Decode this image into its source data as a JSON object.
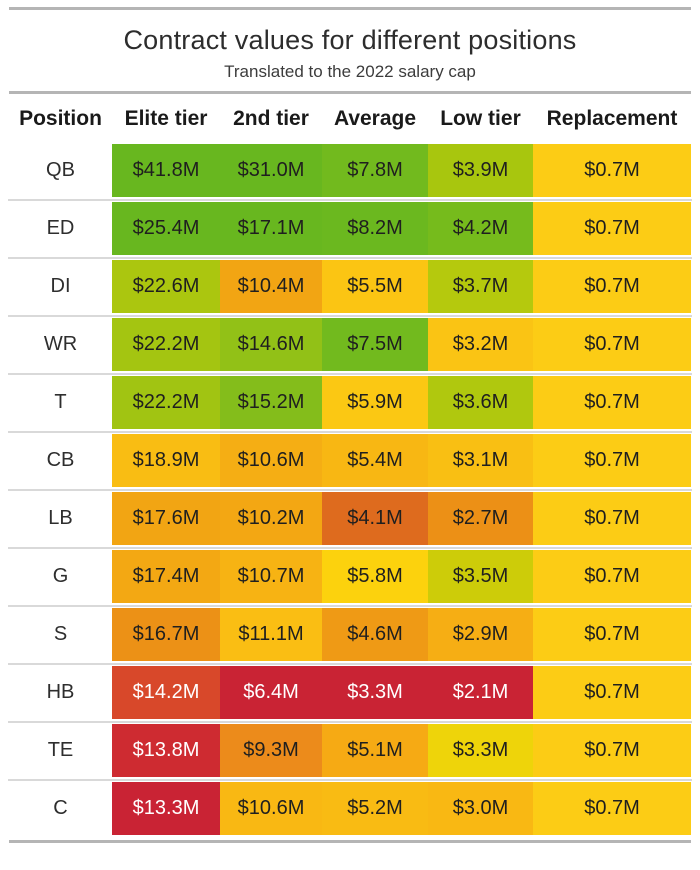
{
  "title": "Contract values for different positions",
  "subtitle": "Translated to the 2022 salary cap",
  "table": {
    "columns": [
      "Position",
      "Elite tier",
      "2nd tier",
      "Average",
      "Low tier",
      "Replacement"
    ]
  },
  "chart_data": {
    "type": "heatmap",
    "title": "Contract values for different positions",
    "subtitle": "Translated to the 2022 salary cap",
    "unit": "million USD (2022 salary cap)",
    "value_format": "$%.1fM",
    "row_label_header": "Position",
    "columns": [
      "Elite tier",
      "2nd tier",
      "Average",
      "Low tier",
      "Replacement"
    ],
    "rows": [
      "QB",
      "ED",
      "DI",
      "WR",
      "T",
      "CB",
      "LB",
      "G",
      "S",
      "HB",
      "TE",
      "C"
    ],
    "values_musd": [
      [
        41.8,
        31.0,
        7.8,
        3.9,
        0.7
      ],
      [
        25.4,
        17.1,
        8.2,
        4.2,
        0.7
      ],
      [
        22.6,
        10.4,
        5.5,
        3.7,
        0.7
      ],
      [
        22.2,
        14.6,
        7.5,
        3.2,
        0.7
      ],
      [
        22.2,
        15.2,
        5.9,
        3.6,
        0.7
      ],
      [
        18.9,
        10.6,
        5.4,
        3.1,
        0.7
      ],
      [
        17.6,
        10.2,
        4.1,
        2.7,
        0.7
      ],
      [
        17.4,
        10.7,
        5.8,
        3.5,
        0.7
      ],
      [
        16.7,
        11.1,
        4.6,
        2.9,
        0.7
      ],
      [
        14.2,
        6.4,
        3.3,
        2.1,
        0.7
      ],
      [
        13.8,
        9.3,
        5.1,
        3.3,
        0.7
      ],
      [
        13.3,
        10.6,
        5.2,
        3.0,
        0.7
      ]
    ],
    "cell_colors": [
      [
        "#68B71F",
        "#68B71F",
        "#72BA1E",
        "#A8C60E",
        "#FCCC15"
      ],
      [
        "#68B71F",
        "#68B71F",
        "#6BB81F",
        "#76BB1C",
        "#FCCC15"
      ],
      [
        "#ABC60F",
        "#F2A513",
        "#FBC513",
        "#B5C90D",
        "#FCCC15"
      ],
      [
        "#A4C511",
        "#92C117",
        "#72BA1E",
        "#FAC414",
        "#FCCC15"
      ],
      [
        "#A1C412",
        "#84BD1B",
        "#FBC813",
        "#B0C80E",
        "#FCCC15"
      ],
      [
        "#F9BD13",
        "#F5AE14",
        "#F8B713",
        "#F9BF13",
        "#FCCC15"
      ],
      [
        "#F2A513",
        "#F3A713",
        "#DE6B1E",
        "#EC9016",
        "#FCCC15"
      ],
      [
        "#F3A813",
        "#F7B313",
        "#FCD20D",
        "#CDCC09",
        "#FCCC15"
      ],
      [
        "#EC9116",
        "#FABE13",
        "#EF9A15",
        "#F6AE14",
        "#FCCC15"
      ],
      [
        "#D8482A",
        "#C92334",
        "#C92334",
        "#C92334",
        "#FCCC15"
      ],
      [
        "#CE2B31",
        "#EC8B1B",
        "#F6AA14",
        "#EED40A",
        "#FCCC15"
      ],
      [
        "#C92334",
        "#F9B813",
        "#F9BB13",
        "#F9B813",
        "#FCCC15"
      ]
    ],
    "white_text_cells": [
      [
        9,
        0
      ],
      [
        9,
        1
      ],
      [
        9,
        2
      ],
      [
        9,
        3
      ],
      [
        10,
        0
      ],
      [
        11,
        0
      ]
    ],
    "text_color_default": "#1f1f1f",
    "text_color_light": "#ffffff",
    "color_scale_note": "per-column scale: green = high value, yellow/orange = mid, red = low value"
  }
}
